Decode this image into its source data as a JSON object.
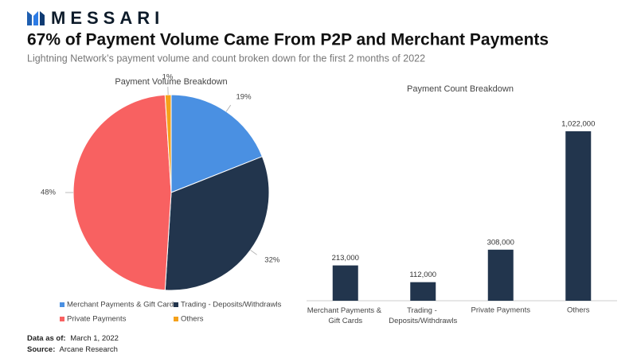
{
  "brand": "MESSARI",
  "title": "67% of Payment Volume Came From P2P and Merchant Payments",
  "subtitle": "Lightning Network’s payment volume and count broken down for the first 2 months of 2022",
  "footer": {
    "date_label": "Data as of:",
    "date": "March 1, 2022",
    "source_label": "Source:",
    "source": "Arcane Research"
  },
  "chart_data": [
    {
      "type": "pie",
      "title": "Payment Volume Breakdown",
      "categories": [
        "Merchant Payments & Gift Cards",
        "Trading - Deposits/Withdrawls",
        "Private Payments",
        "Others"
      ],
      "values": [
        19,
        32,
        48,
        1
      ],
      "value_labels": [
        "19%",
        "32%",
        "48%",
        "1%"
      ],
      "colors": [
        "#4a90e2",
        "#22354d",
        "#f86161",
        "#f5a11b"
      ],
      "legend": "bottom"
    },
    {
      "type": "bar",
      "title": "Payment Count Breakdown",
      "categories": [
        "Merchant Payments & Gift Cards",
        "Trading - Deposits/Withdrawls",
        "Private Payments",
        "Others"
      ],
      "values": [
        213000,
        112000,
        308000,
        1022000
      ],
      "value_labels": [
        "213,000",
        "112,000",
        "308,000",
        "1,022,000"
      ],
      "color": "#22354d"
    }
  ]
}
